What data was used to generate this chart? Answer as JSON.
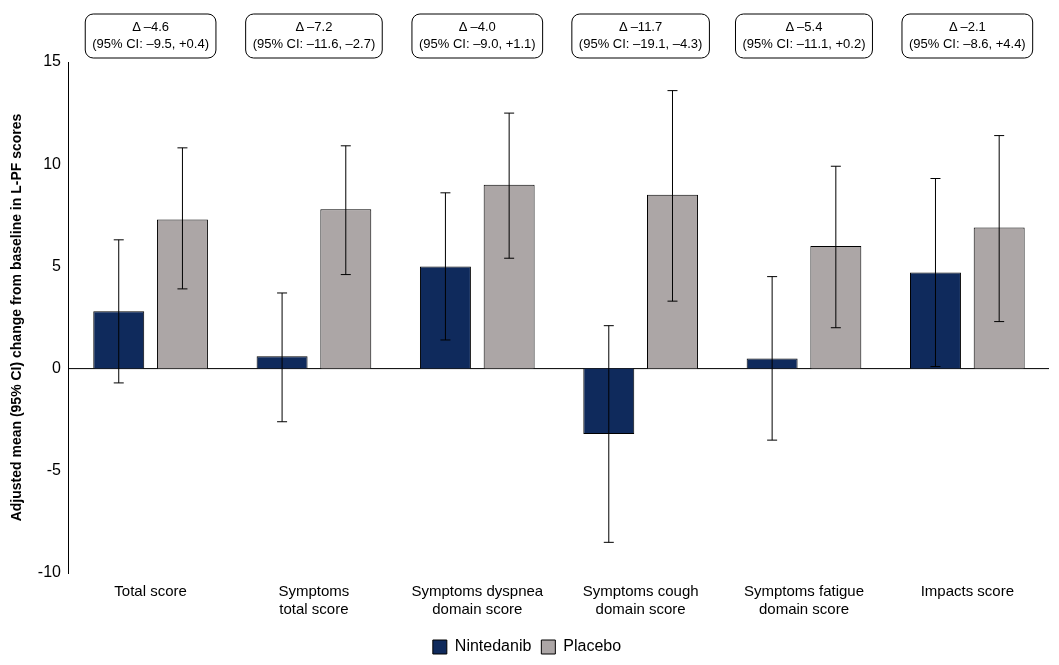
{
  "chart_data": {
    "type": "bar",
    "ylabel": "Adjusted mean (95% CI) change from baseline in L-PF scores",
    "categories": [
      "Total score",
      "Symptoms\ntotal score",
      "Symptoms dyspnea\ndomain score",
      "Symptoms cough\ndomain score",
      "Symptoms fatigue\ndomain score",
      "Impacts score"
    ],
    "series": [
      {
        "name": "Nintedanib",
        "color": "#0f2a5c",
        "values": [
          2.8,
          0.6,
          5.0,
          -3.2,
          0.5,
          4.7
        ],
        "errors": [
          [
            -0.7,
            6.3
          ],
          [
            -2.6,
            3.7
          ],
          [
            1.4,
            8.6
          ],
          [
            -8.5,
            2.1
          ],
          [
            -3.5,
            4.5
          ],
          [
            0.1,
            9.3
          ]
        ]
      },
      {
        "name": "Placebo",
        "color": "#aca6a6",
        "values": [
          7.3,
          7.8,
          9.0,
          8.5,
          6.0,
          6.9
        ],
        "errors": [
          [
            3.9,
            10.8
          ],
          [
            4.6,
            10.9
          ],
          [
            5.4,
            12.5
          ],
          [
            3.3,
            13.6
          ],
          [
            2.0,
            9.9
          ],
          [
            2.3,
            11.4
          ]
        ]
      }
    ],
    "ref_lines": [
      {
        "axis": "y",
        "value": 0,
        "color": "#000000"
      }
    ],
    "ylim": [
      -10,
      15
    ],
    "yticks": [
      -10,
      -5,
      0,
      5,
      10,
      15
    ],
    "grid": false,
    "legend": "bottom",
    "annotations": [
      "Δ –4.6\n(95% CI: –9.5, +0.4)",
      "Δ –7.2\n(95% CI: –11.6, –2.7)",
      "Δ –4.0\n(95% CI: –9.0, +1.1)",
      "Δ –11.7\n(95% CI: –19.1, –4.3)",
      "Δ –5.4\n(95% CI: –11.1, +0.2)",
      "Δ –2.1\n(95% CI: –8.6, +4.4)"
    ]
  }
}
